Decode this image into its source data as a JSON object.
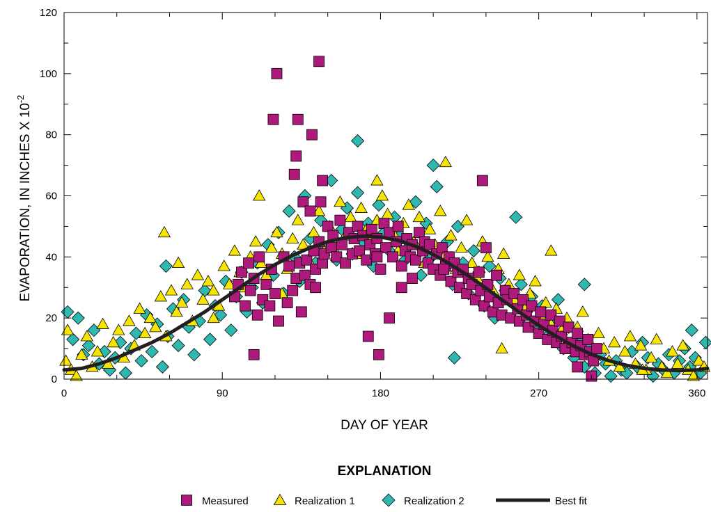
{
  "chart_data": {
    "type": "scatter",
    "xlabel": "DAY OF YEAR",
    "ylabel": "EVAPORATION, IN INCHES X 10",
    "ylabel_exponent": "-2",
    "xlim": [
      0,
      366
    ],
    "ylim": [
      0,
      120
    ],
    "xticks": [
      0,
      90,
      180,
      270,
      360
    ],
    "yticks": [
      0,
      20,
      40,
      60,
      80,
      100,
      120
    ],
    "grid": false,
    "legend_title": "EXPLANATION",
    "legend_position": "bottom",
    "colors": {
      "measured": "#b0197c",
      "realization1": "#f7e400",
      "realization2": "#2fb8b0",
      "best_fit": "#231f20"
    },
    "series": [
      {
        "name": "Measured",
        "marker": "square",
        "x": [
          97,
          99,
          101,
          103,
          105,
          106,
          108,
          110,
          111,
          113,
          115,
          117,
          118,
          120,
          122,
          125,
          127,
          128,
          130,
          132,
          134,
          135,
          137,
          138,
          140,
          142,
          143,
          145,
          147,
          148,
          150,
          152,
          153,
          155,
          157,
          158,
          160,
          162,
          164,
          165,
          167,
          168,
          170,
          172,
          174,
          175,
          177,
          178,
          180,
          182,
          183,
          185,
          187,
          189,
          190,
          192,
          194,
          195,
          197,
          198,
          200,
          202,
          204,
          205,
          207,
          208,
          210,
          212,
          214,
          215,
          217,
          219,
          220,
          222,
          224,
          225,
          227,
          229,
          230,
          232,
          234,
          236,
          237,
          239,
          241,
          242,
          244,
          246,
          247,
          249,
          251,
          252,
          254,
          256,
          258,
          259,
          261,
          263,
          264,
          266,
          268,
          270,
          271,
          273,
          275,
          277,
          278,
          280,
          282,
          283,
          285,
          287,
          289,
          291,
          292,
          294,
          296,
          298,
          299,
          301,
          303,
          119,
          121,
          133,
          141,
          145,
          132,
          136,
          140,
          147,
          146,
          131,
          143,
          173,
          179,
          185,
          192,
          198,
          216,
          238,
          240,
          292,
          300,
          178,
          108
        ],
        "y": [
          27,
          31,
          35,
          24,
          38,
          29,
          33,
          21,
          40,
          26,
          31,
          24,
          36,
          28,
          19,
          40,
          25,
          37,
          29,
          33,
          38,
          22,
          34,
          39,
          31,
          42,
          36,
          45,
          38,
          41,
          50,
          43,
          47,
          40,
          52,
          44,
          38,
          48,
          41,
          46,
          50,
          42,
          47,
          39,
          44,
          49,
          41,
          46,
          36,
          51,
          43,
          48,
          40,
          45,
          50,
          37,
          42,
          46,
          40,
          44,
          39,
          48,
          42,
          45,
          38,
          44,
          36,
          41,
          34,
          43,
          37,
          40,
          32,
          38,
          35,
          30,
          36,
          28,
          33,
          31,
          26,
          35,
          29,
          24,
          31,
          27,
          22,
          34,
          25,
          21,
          29,
          26,
          20,
          28,
          23,
          19,
          26,
          21,
          17,
          24,
          19,
          15,
          22,
          18,
          13,
          21,
          16,
          12,
          19,
          14,
          10,
          17,
          12,
          9,
          15,
          11,
          8,
          13,
          9,
          6,
          10,
          85,
          100,
          85,
          80,
          104,
          73,
          58,
          55,
          65,
          58,
          67,
          30,
          14,
          8,
          20,
          30,
          33,
          36,
          65,
          43,
          4,
          1,
          40,
          8
        ]
      },
      {
        "name": "Realization 1",
        "marker": "triangle",
        "x": [
          1,
          4,
          7,
          10,
          13,
          16,
          19,
          22,
          25,
          28,
          31,
          34,
          37,
          40,
          43,
          46,
          49,
          52,
          55,
          58,
          61,
          64,
          67,
          70,
          73,
          76,
          79,
          82,
          85,
          88,
          91,
          94,
          97,
          100,
          103,
          106,
          109,
          112,
          115,
          118,
          121,
          124,
          127,
          130,
          133,
          136,
          139,
          142,
          145,
          148,
          151,
          154,
          157,
          160,
          163,
          166,
          169,
          172,
          175,
          178,
          181,
          184,
          187,
          190,
          193,
          196,
          199,
          202,
          205,
          208,
          211,
          214,
          217,
          220,
          223,
          226,
          229,
          232,
          235,
          238,
          241,
          244,
          247,
          250,
          253,
          256,
          259,
          262,
          265,
          268,
          271,
          274,
          277,
          280,
          283,
          286,
          289,
          292,
          295,
          298,
          301,
          304,
          307,
          310,
          313,
          316,
          319,
          322,
          325,
          328,
          331,
          334,
          337,
          340,
          343,
          346,
          349,
          352,
          355,
          358,
          361,
          364,
          57,
          65,
          85,
          111,
          124,
          155,
          178,
          217,
          249,
          277,
          329,
          2
        ],
        "y": [
          6,
          3,
          1,
          8,
          14,
          4,
          9,
          18,
          5,
          12,
          16,
          7,
          19,
          11,
          23,
          15,
          20,
          17,
          27,
          14,
          29,
          22,
          25,
          31,
          19,
          34,
          26,
          32,
          29,
          24,
          37,
          31,
          42,
          35,
          30,
          40,
          45,
          38,
          34,
          43,
          48,
          41,
          36,
          46,
          52,
          44,
          39,
          48,
          55,
          42,
          50,
          45,
          58,
          47,
          53,
          41,
          56,
          49,
          46,
          52,
          60,
          54,
          48,
          42,
          51,
          57,
          45,
          53,
          38,
          49,
          44,
          55,
          41,
          47,
          36,
          43,
          52,
          38,
          33,
          45,
          40,
          29,
          36,
          41,
          31,
          26,
          34,
          23,
          28,
          32,
          21,
          25,
          18,
          23,
          16,
          20,
          12,
          17,
          22,
          13,
          8,
          15,
          10,
          6,
          12,
          4,
          9,
          14,
          5,
          11,
          3,
          7,
          13,
          4,
          2,
          9,
          5,
          11,
          3,
          1,
          6,
          4,
          48,
          38,
          20,
          60,
          28,
          41,
          65,
          71,
          10,
          42,
          3,
          16
        ]
      },
      {
        "name": "Realization 2",
        "marker": "diamond",
        "x": [
          2,
          5,
          8,
          11,
          14,
          17,
          20,
          23,
          26,
          29,
          32,
          35,
          38,
          41,
          44,
          47,
          50,
          53,
          56,
          59,
          62,
          65,
          68,
          71,
          74,
          77,
          80,
          83,
          86,
          89,
          92,
          95,
          98,
          101,
          104,
          107,
          110,
          113,
          116,
          119,
          122,
          125,
          128,
          131,
          134,
          137,
          140,
          143,
          146,
          149,
          152,
          155,
          158,
          161,
          164,
          167,
          170,
          173,
          176,
          179,
          182,
          185,
          188,
          191,
          194,
          197,
          200,
          203,
          206,
          209,
          212,
          215,
          218,
          221,
          224,
          227,
          230,
          233,
          236,
          239,
          242,
          245,
          248,
          251,
          254,
          257,
          260,
          263,
          266,
          269,
          272,
          275,
          278,
          281,
          284,
          287,
          290,
          293,
          296,
          299,
          302,
          305,
          308,
          311,
          314,
          317,
          320,
          323,
          326,
          329,
          332,
          335,
          338,
          341,
          344,
          347,
          350,
          353,
          356,
          359,
          362,
          365,
          167,
          58,
          222,
          210,
          296,
          357
        ],
        "y": [
          22,
          13,
          20,
          8,
          11,
          16,
          5,
          9,
          3,
          7,
          12,
          2,
          10,
          15,
          6,
          21,
          9,
          18,
          4,
          14,
          23,
          11,
          26,
          17,
          8,
          19,
          29,
          13,
          24,
          21,
          32,
          16,
          27,
          35,
          22,
          30,
          38,
          25,
          44,
          34,
          48,
          28,
          55,
          40,
          32,
          60,
          46,
          38,
          52,
          43,
          65,
          39,
          49,
          56,
          41,
          61,
          45,
          51,
          37,
          57,
          48,
          42,
          53,
          47,
          39,
          44,
          58,
          34,
          51,
          40,
          63,
          36,
          45,
          31,
          50,
          38,
          28,
          42,
          35,
          24,
          37,
          20,
          33,
          29,
          26,
          53,
          31,
          22,
          27,
          18,
          24,
          14,
          19,
          26,
          10,
          17,
          7,
          13,
          4,
          11,
          2,
          8,
          5,
          1,
          6,
          3,
          2,
          9,
          4,
          12,
          7,
          1,
          5,
          3,
          8,
          2,
          6,
          10,
          4,
          7,
          2,
          12,
          78,
          37,
          7,
          70,
          31,
          16
        ]
      },
      {
        "name": "Best fit",
        "marker": "line",
        "x": [
          0,
          10,
          20,
          30,
          40,
          50,
          60,
          70,
          80,
          90,
          100,
          110,
          120,
          130,
          140,
          150,
          160,
          170,
          180,
          190,
          200,
          210,
          220,
          230,
          240,
          250,
          260,
          270,
          280,
          290,
          300,
          310,
          320,
          330,
          340,
          350,
          360,
          366
        ],
        "y": [
          3,
          3.5,
          5,
          7,
          9.5,
          12,
          15,
          18.5,
          22,
          26,
          30,
          34,
          37.5,
          40.5,
          43,
          45,
          46.3,
          46.8,
          46.5,
          45.4,
          43.5,
          40.8,
          37.5,
          33.8,
          29.8,
          25.6,
          21.5,
          17.6,
          14,
          10.8,
          8.1,
          6,
          4.5,
          3.5,
          3,
          2.8,
          3,
          3.5
        ]
      }
    ]
  }
}
